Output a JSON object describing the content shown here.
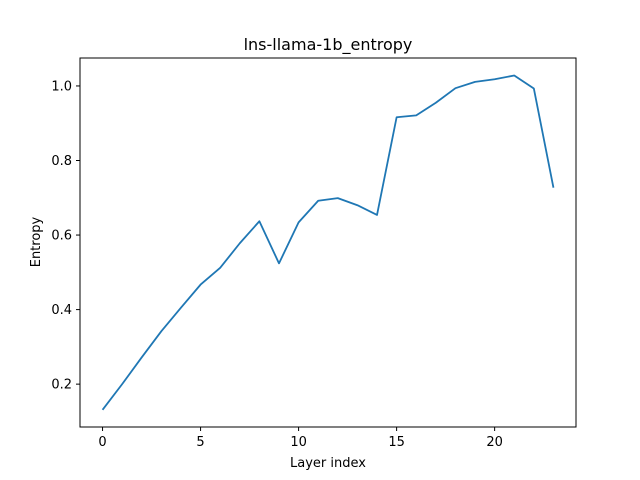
{
  "chart_data": {
    "type": "line",
    "title": "lns-llama-1b_entropy",
    "xlabel": "Layer index",
    "ylabel": "Entropy",
    "xlim": [
      -1.15,
      24.15
    ],
    "ylim": [
      0.085,
      1.075
    ],
    "xticks": [
      0,
      5,
      10,
      15,
      20
    ],
    "xtick_labels": [
      "0",
      "5",
      "10",
      "15",
      "20"
    ],
    "yticks": [
      0.2,
      0.4,
      0.6,
      0.8,
      1.0
    ],
    "ytick_labels": [
      "0.2",
      "0.4",
      "0.6",
      "0.8",
      "1.0"
    ],
    "grid": false,
    "legend": "none",
    "series": [
      {
        "color": "#1f77b4",
        "x": [
          0,
          1,
          2,
          3,
          4,
          5,
          6,
          7,
          8,
          9,
          10,
          11,
          12,
          13,
          14,
          15,
          16,
          17,
          18,
          19,
          20,
          21,
          22,
          23
        ],
        "y": [
          0.131,
          0.2,
          0.272,
          0.342,
          0.405,
          0.467,
          0.512,
          0.578,
          0.637,
          0.524,
          0.634,
          0.692,
          0.699,
          0.68,
          0.654,
          0.916,
          0.921,
          0.955,
          0.994,
          1.011,
          1.018,
          1.028,
          0.993,
          0.727
        ]
      }
    ]
  }
}
